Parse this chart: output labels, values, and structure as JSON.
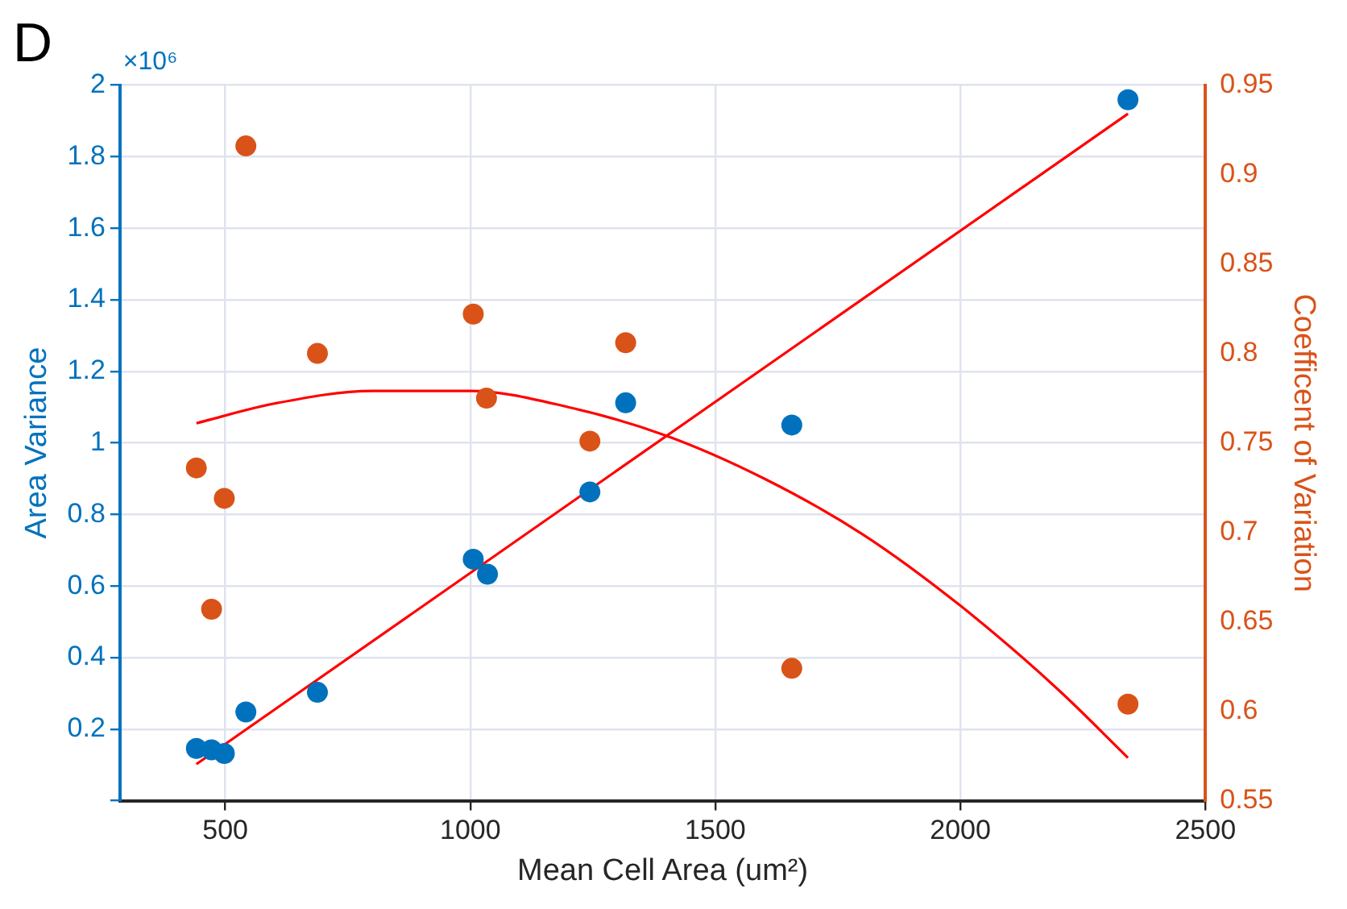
{
  "chart_data": {
    "type": "scatter",
    "title": "D",
    "xlabel": "Mean Cell Area (um²)",
    "ylabel": "Area Variance",
    "y2label": "Coefficent of Variation",
    "annotations": [
      "×10⁶"
    ],
    "xlim": [
      285,
      2500
    ],
    "xticks": [
      500,
      1000,
      1500,
      2000,
      2500
    ],
    "ylim": [
      0,
      2
    ],
    "yticks": [
      {
        "value": 0,
        "label": null
      },
      0.2,
      0.4,
      0.6,
      0.8,
      1,
      1.2,
      1.4,
      1.6,
      1.8,
      2
    ],
    "y2lim": [
      0.55,
      0.95
    ],
    "y2ticks": [
      0.55,
      0.6,
      0.65,
      0.7,
      0.75,
      0.8,
      0.85,
      0.9,
      0.95
    ],
    "grid": true,
    "legend": false,
    "marker": "circle",
    "series": [
      {
        "type": "scatter",
        "color": "#0072bd",
        "x": [
          441,
          472,
          498,
          542,
          688,
          1006,
          1035,
          1244,
          1317,
          1656,
          2342
        ],
        "values": [
          0.146,
          0.142,
          0.132,
          0.248,
          0.303,
          0.675,
          0.633,
          0.863,
          1.112,
          1.05,
          1.959
        ]
      },
      {
        "type": "scatter",
        "axis": "y2",
        "color": "#d95319",
        "x": [
          441,
          472,
          498,
          542,
          688,
          1006,
          1033,
          1244,
          1317,
          1656,
          2342
        ],
        "values": [
          0.736,
          0.657,
          0.719,
          0.916,
          0.8,
          0.822,
          0.775,
          0.751,
          0.806,
          0.624,
          0.604
        ]
      },
      {
        "type": "line",
        "color": "#ff0000",
        "marker": "none",
        "x": [
          441,
          2342
        ],
        "values": [
          0.102,
          1.92
        ]
      },
      {
        "type": "line",
        "axis": "y2",
        "color": "#ff0000",
        "marker": "none",
        "x": [
          441,
          600,
          800,
          1000,
          1200,
          1400,
          1600,
          1800,
          2000,
          2200,
          2342
        ],
        "values": [
          0.761,
          0.772,
          0.779,
          0.779,
          0.77,
          0.754,
          0.73,
          0.699,
          0.659,
          0.612,
          0.574
        ]
      }
    ]
  }
}
